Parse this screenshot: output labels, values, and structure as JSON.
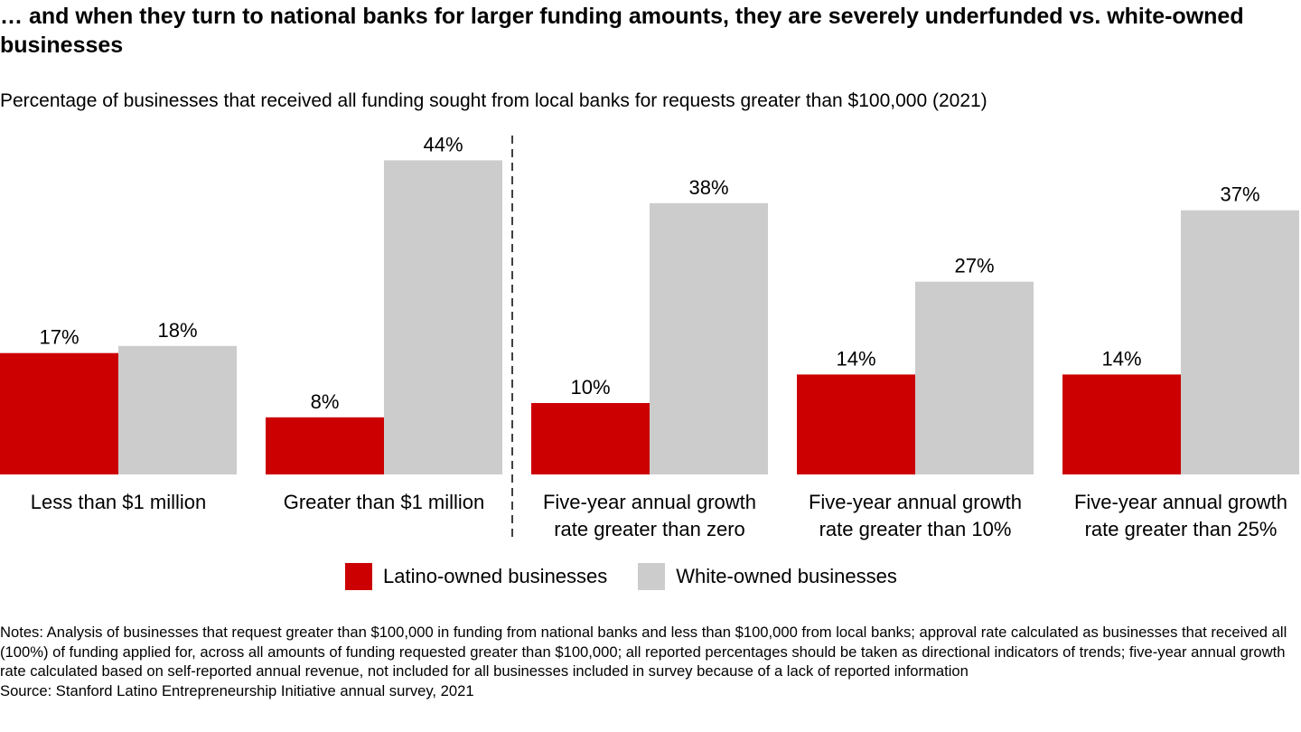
{
  "title": "… and when they turn to national banks for larger funding amounts, they are severely underfunded vs. white-owned businesses",
  "subtitle": "Percentage of businesses that received all funding sought from local banks for requests greater than $100,000 (2021)",
  "colors": {
    "latino": "#cc0000",
    "white": "#cccccc",
    "divider": "#000000"
  },
  "chart_data": {
    "type": "bar",
    "title": "… and when they turn to national banks for larger funding amounts, they are severely underfunded vs. white-owned businesses",
    "subtitle": "Percentage of businesses that received all funding sought from local banks for requests greater than $100,000 (2021)",
    "categories": [
      [
        "Less than $1 million"
      ],
      [
        "Greater than $1 million"
      ],
      [
        "Five-year annual growth",
        "rate greater than zero"
      ],
      [
        "Five-year annual growth",
        "rate greater than 10%"
      ],
      [
        "Five-year annual growth",
        "rate greater than 25%"
      ]
    ],
    "series": [
      {
        "name": "Latino-owned businesses",
        "values": [
          17,
          8,
          10,
          14,
          14
        ],
        "labels": [
          "17%",
          "8%",
          "10%",
          "14%",
          "14%"
        ]
      },
      {
        "name": "White-owned businesses",
        "values": [
          18,
          44,
          38,
          27,
          37
        ],
        "labels": [
          "18%",
          "44%",
          "38%",
          "27%",
          "37%"
        ]
      }
    ],
    "unit": "%",
    "ylim": [
      0,
      44
    ],
    "grid": false,
    "legend_position": "bottom",
    "divider_after_category": 1
  },
  "legend": {
    "latino_label": "Latino-owned businesses",
    "white_label": "White-owned businesses"
  },
  "notes": "Notes: Analysis of businesses that request greater than $100,000 in funding from national banks and less than $100,000 from local banks; approval rate calculated as businesses that received all (100%) of funding applied for, across all amounts of funding requested greater than $100,000; all reported percentages should be taken as directional indicators of trends; five-year annual growth rate calculated based on self-reported annual revenue, not included for all businesses included in survey because of a lack of reported information",
  "source": "Source: Stanford Latino Entrepreneurship Initiative annual survey, 2021"
}
